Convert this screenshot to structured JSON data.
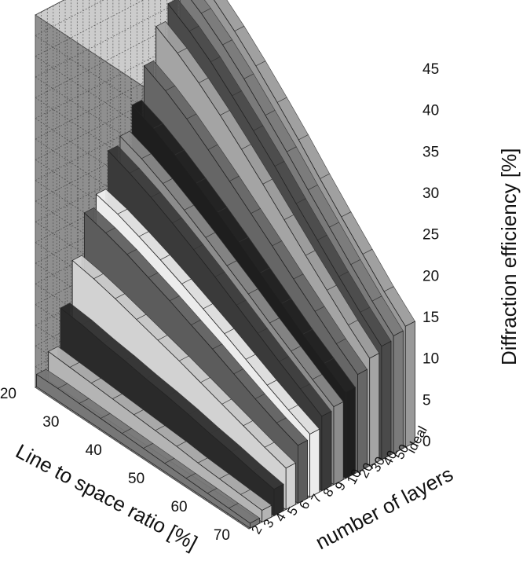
{
  "chart_data": {
    "type": "area",
    "variant": "3d-ribbon-waterfall",
    "xlabel": "Line to space ratio [%]",
    "ylabel": "number of layers",
    "zlabel": "Diffraction efficiency [%]",
    "x_ticks": [
      "20",
      "30",
      "40",
      "50",
      "60",
      "70"
    ],
    "z_ticks": [
      "0",
      "5",
      "10",
      "15",
      "20",
      "25",
      "30",
      "35",
      "40",
      "45"
    ],
    "xlim": [
      20,
      70
    ],
    "zlim": [
      0,
      45
    ],
    "grid": true,
    "x": [
      20,
      25,
      30,
      35,
      40,
      45,
      50,
      55,
      60,
      65,
      70
    ],
    "series": [
      {
        "name": "2",
        "values": [
          1.5,
          1.5,
          1.4,
          1.3,
          1.2,
          1.1,
          1.0,
          0.9,
          0.8,
          0.7,
          0.6
        ]
      },
      {
        "name": "3",
        "values": [
          3.5,
          3.3,
          3.1,
          2.9,
          2.7,
          2.5,
          2.3,
          2.0,
          1.8,
          1.6,
          1.4
        ]
      },
      {
        "name": "4",
        "values": [
          8.0,
          7.7,
          7.2,
          6.8,
          6.3,
          5.9,
          5.4,
          4.8,
          4.3,
          3.7,
          3.2
        ]
      },
      {
        "name": "5",
        "values": [
          13.0,
          12.5,
          11.8,
          11.0,
          10.2,
          9.4,
          8.5,
          7.6,
          6.7,
          5.8,
          5.0
        ]
      },
      {
        "name": "6",
        "values": [
          18.0,
          17.3,
          16.4,
          15.3,
          14.2,
          13.0,
          11.8,
          10.5,
          9.2,
          8.0,
          7.0
        ]
      },
      {
        "name": "7",
        "values": [
          19.5,
          18.8,
          17.8,
          16.7,
          15.5,
          14.2,
          12.9,
          11.5,
          10.1,
          8.8,
          7.6
        ]
      },
      {
        "name": "8",
        "values": [
          24.0,
          23.0,
          21.8,
          20.4,
          18.9,
          17.3,
          15.6,
          13.9,
          12.2,
          10.6,
          9.0
        ]
      },
      {
        "name": "9",
        "values": [
          25.0,
          24.0,
          22.7,
          21.2,
          19.6,
          17.9,
          16.2,
          14.4,
          12.7,
          11.0,
          9.4
        ]
      },
      {
        "name": "10",
        "values": [
          28.0,
          26.9,
          25.4,
          23.7,
          21.9,
          20.0,
          18.0,
          16.0,
          14.0,
          12.2,
          10.4
        ]
      },
      {
        "name": "20",
        "values": [
          32.0,
          30.7,
          29.0,
          27.0,
          24.9,
          22.7,
          20.5,
          18.2,
          16.0,
          13.8,
          11.8
        ]
      },
      {
        "name": "30",
        "values": [
          36.0,
          34.5,
          32.6,
          30.4,
          28.0,
          25.5,
          22.9,
          20.3,
          17.8,
          15.3,
          13.0
        ]
      },
      {
        "name": "40",
        "values": [
          38.0,
          36.4,
          34.4,
          32.0,
          29.5,
          26.9,
          24.1,
          21.4,
          18.7,
          16.1,
          13.7
        ]
      },
      {
        "name": "50",
        "values": [
          39.5,
          37.8,
          35.7,
          33.3,
          30.6,
          27.9,
          25.0,
          22.2,
          19.4,
          16.7,
          14.2
        ]
      },
      {
        "name": "ideal",
        "values": [
          40.5,
          38.8,
          36.6,
          34.1,
          31.4,
          28.6,
          25.6,
          22.7,
          19.9,
          17.1,
          14.6
        ]
      }
    ],
    "colors": [
      "#777777",
      "#b4b4b4",
      "#2a2a2a",
      "#d2d2d2",
      "#5c5c5c",
      "#ececec",
      "#3a3a3a",
      "#8c8c8c",
      "#1e1e1e",
      "#666666",
      "#a4a4a4",
      "#4a4a4a",
      "#7a7a7a",
      "#999999"
    ],
    "pane_color": "#cccccc"
  }
}
